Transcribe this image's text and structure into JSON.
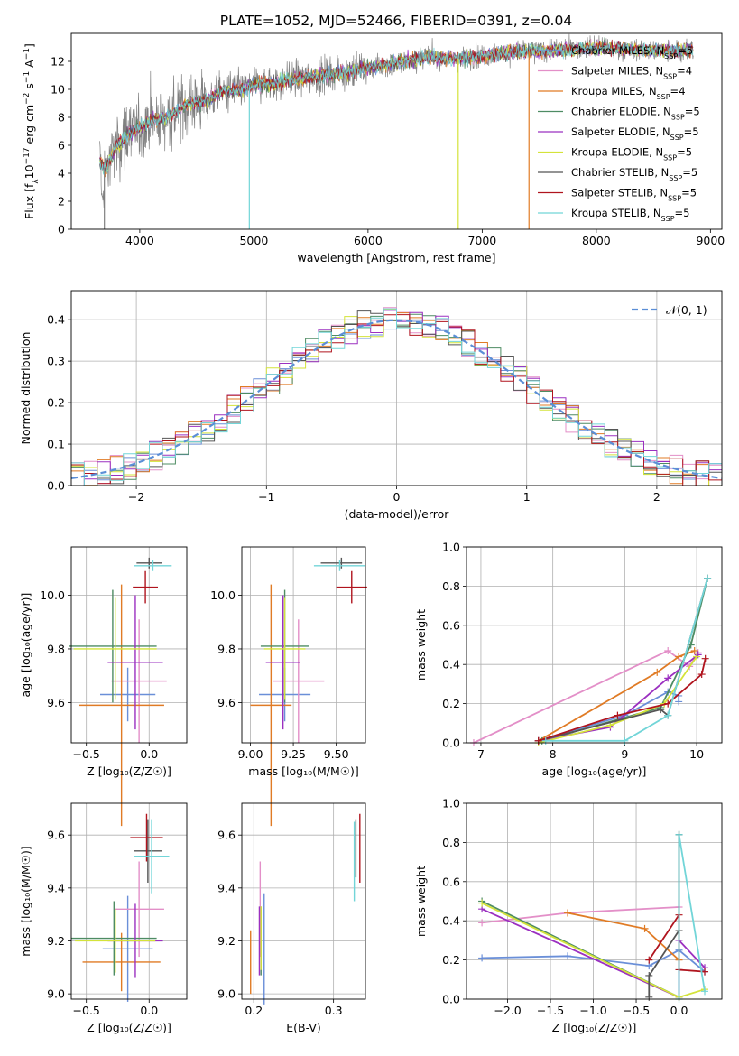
{
  "figure_title": "PLATE=1052, MJD=52466, FIBERID=0391, z=0.04",
  "colors": {
    "chabrier_miles": "#6a8fd8",
    "salpeter_miles": "#e38fc8",
    "kroupa_miles": "#e07b25",
    "chabrier_elodie": "#4e8c63",
    "salpeter_elodie": "#9b30c0",
    "kroupa_elodie": "#d4e33a",
    "chabrier_stelib": "#555555",
    "salpeter_stelib": "#b0141e",
    "kroupa_stelib": "#72d5d8",
    "data": "#808080",
    "normal": "#5b8ed6",
    "grid": "#b0b0b0"
  },
  "chart_data": [
    {
      "id": "spectrum",
      "type": "line",
      "title": "PLATE=1052, MJD=52466, FIBERID=0391, z=0.04",
      "xlabel": "wavelength [Angstrom, rest frame]",
      "ylabel_parts": [
        "Flux [f",
        "λ",
        "10",
        "−17",
        " erg cm",
        "−2",
        " s",
        "−1",
        " A",
        "−1",
        "]"
      ],
      "xlim": [
        3400,
        9100
      ],
      "ylim": [
        0,
        14
      ],
      "xticks": [
        "4000",
        "5000",
        "6000",
        "7000",
        "8000",
        "9000"
      ],
      "yticks": [
        "0",
        "2",
        "4",
        "6",
        "8",
        "10",
        "12"
      ],
      "grid": false,
      "legend_position": "right",
      "legend": [
        {
          "name": "Chabrier MILES",
          "n": "5",
          "color_key": "chabrier_miles"
        },
        {
          "name": "Salpeter MILES",
          "n": "4",
          "color_key": "salpeter_miles"
        },
        {
          "name": "Kroupa MILES",
          "n": "4",
          "color_key": "kroupa_miles"
        },
        {
          "name": "Chabrier ELODIE",
          "n": "5",
          "color_key": "chabrier_elodie"
        },
        {
          "name": "Salpeter ELODIE",
          "n": "5",
          "color_key": "salpeter_elodie"
        },
        {
          "name": "Kroupa ELODIE",
          "n": "5",
          "color_key": "kroupa_elodie"
        },
        {
          "name": "Chabrier STELIB",
          "n": "5",
          "color_key": "chabrier_stelib"
        },
        {
          "name": "Salpeter STELIB",
          "n": "5",
          "color_key": "salpeter_stelib"
        },
        {
          "name": "Kroupa STELIB",
          "n": "5",
          "color_key": "kroupa_stelib"
        }
      ],
      "continuum": [
        [
          3650,
          4.8
        ],
        [
          3700,
          4.3
        ],
        [
          3800,
          6.0
        ],
        [
          3900,
          6.8
        ],
        [
          4000,
          7.3
        ],
        [
          4100,
          7.8
        ],
        [
          4200,
          7.9
        ],
        [
          4300,
          8.3
        ],
        [
          4400,
          8.9
        ],
        [
          4500,
          9.1
        ],
        [
          4600,
          9.3
        ],
        [
          4700,
          9.8
        ],
        [
          4800,
          9.9
        ],
        [
          4900,
          10.0
        ],
        [
          5000,
          10.3
        ],
        [
          5100,
          10.4
        ],
        [
          5200,
          10.5
        ],
        [
          5300,
          10.7
        ],
        [
          5400,
          10.8
        ],
        [
          5500,
          10.9
        ],
        [
          5600,
          11.0
        ],
        [
          5700,
          11.1
        ],
        [
          5800,
          11.2
        ],
        [
          5900,
          11.4
        ],
        [
          6000,
          11.5
        ],
        [
          6100,
          11.6
        ],
        [
          6200,
          11.8
        ],
        [
          6300,
          12.0
        ],
        [
          6400,
          12.1
        ],
        [
          6500,
          12.3
        ],
        [
          6600,
          12.3
        ],
        [
          6700,
          12.2
        ],
        [
          6800,
          12.2
        ],
        [
          6900,
          12.3
        ],
        [
          7000,
          12.4
        ],
        [
          7200,
          12.6
        ],
        [
          7400,
          12.7
        ],
        [
          7600,
          12.8
        ],
        [
          7800,
          12.9
        ],
        [
          8000,
          13.0
        ],
        [
          8200,
          12.9
        ],
        [
          8400,
          12.8
        ],
        [
          8600,
          12.8
        ],
        [
          8800,
          12.8
        ]
      ]
    },
    {
      "id": "residuals",
      "type": "histogram",
      "xlabel": "(data-model)/error",
      "ylabel": "Normed distribution",
      "xlim": [
        -2.5,
        2.5
      ],
      "ylim": [
        0,
        0.47
      ],
      "xticks": [
        "−2",
        "−1",
        "0",
        "1",
        "2"
      ],
      "yticks": [
        "0.0",
        "0.1",
        "0.2",
        "0.3",
        "0.4"
      ],
      "grid": true,
      "legend_position": "top-right",
      "legend_label": "𝒩(0, 1)"
    },
    {
      "id": "age_vs_Z",
      "type": "scatter",
      "xlabel": "Z [log₁₀(Z/Z☉)]",
      "ylabel": "age  [log₁₀(age/yr)]",
      "xlim": [
        -0.62,
        0.3
      ],
      "ylim": [
        9.45,
        10.18
      ],
      "xticks": [
        "−0.5",
        "0.0"
      ],
      "yticks": [
        "9.6",
        "9.8",
        "10.0"
      ],
      "grid": true,
      "points": [
        {
          "color_key": "chabrier_miles",
          "x": -0.17,
          "y": 9.63,
          "xerr": 0.22,
          "yerr": 0.1
        },
        {
          "color_key": "salpeter_miles",
          "x": -0.08,
          "y": 9.68,
          "xerr": 0.22,
          "yerr": 0.23
        },
        {
          "color_key": "kroupa_miles",
          "x": -0.22,
          "y": 9.59,
          "xerr": 0.34,
          "yerr": 0.45
        },
        {
          "color_key": "chabrier_elodie",
          "x": -0.29,
          "y": 9.81,
          "xerr": 0.35,
          "yerr": 0.21
        },
        {
          "color_key": "salpeter_elodie",
          "x": -0.11,
          "y": 9.75,
          "xerr": 0.22,
          "yerr": 0.25
        },
        {
          "color_key": "kroupa_elodie",
          "x": -0.27,
          "y": 9.8,
          "xerr": 0.33,
          "yerr": 0.19
        },
        {
          "color_key": "chabrier_stelib",
          "x": 0.0,
          "y": 10.12,
          "xerr": 0.1,
          "yerr": 0.02
        },
        {
          "color_key": "salpeter_stelib",
          "x": -0.03,
          "y": 10.03,
          "xerr": 0.1,
          "yerr": 0.06
        },
        {
          "color_key": "kroupa_stelib",
          "x": 0.03,
          "y": 10.11,
          "xerr": 0.15,
          "yerr": 0.02
        }
      ]
    },
    {
      "id": "age_vs_mass",
      "type": "scatter",
      "xlabel": "mass [log₁₀(M/M☉)]",
      "ylabel": "",
      "xlim": [
        8.95,
        9.67
      ],
      "ylim": [
        9.45,
        10.18
      ],
      "xticks": [
        "9.00",
        "9.25",
        "9.50"
      ],
      "yticks": [
        "9.6",
        "9.8",
        "10.0"
      ],
      "grid": true,
      "points": [
        {
          "color_key": "chabrier_miles",
          "x": 9.2,
          "y": 9.63,
          "xerr": 0.15,
          "yerr": 0.1
        },
        {
          "color_key": "salpeter_miles",
          "x": 9.28,
          "y": 9.68,
          "xerr": 0.15,
          "yerr": 0.23
        },
        {
          "color_key": "kroupa_miles",
          "x": 9.12,
          "y": 9.59,
          "xerr": 0.12,
          "yerr": 0.45
        },
        {
          "color_key": "chabrier_elodie",
          "x": 9.2,
          "y": 9.81,
          "xerr": 0.14,
          "yerr": 0.21
        },
        {
          "color_key": "salpeter_elodie",
          "x": 9.19,
          "y": 9.75,
          "xerr": 0.1,
          "yerr": 0.25
        },
        {
          "color_key": "kroupa_elodie",
          "x": 9.2,
          "y": 9.8,
          "xerr": 0.12,
          "yerr": 0.19
        },
        {
          "color_key": "chabrier_stelib",
          "x": 9.53,
          "y": 10.12,
          "xerr": 0.12,
          "yerr": 0.02
        },
        {
          "color_key": "salpeter_stelib",
          "x": 9.59,
          "y": 10.03,
          "xerr": 0.09,
          "yerr": 0.06
        },
        {
          "color_key": "kroupa_stelib",
          "x": 9.52,
          "y": 10.11,
          "xerr": 0.15,
          "yerr": 0.02
        }
      ]
    },
    {
      "id": "mass_weight_vs_age",
      "type": "line",
      "xlabel": "age  [log₁₀(age/yr)]",
      "ylabel": "mass weight",
      "xlim": [
        6.8,
        10.35
      ],
      "ylim": [
        0,
        1
      ],
      "xticks": [
        "7",
        "8",
        "9",
        "10"
      ],
      "yticks": [
        "0.0",
        "0.2",
        "0.4",
        "0.6",
        "0.8",
        "1.0"
      ],
      "grid": true,
      "series": [
        {
          "color_key": "chabrier_miles",
          "points": [
            [
              7.8,
              0.01
            ],
            [
              9.0,
              0.14
            ],
            [
              9.6,
              0.26
            ],
            [
              9.75,
              0.24
            ],
            [
              9.75,
              0.21
            ]
          ]
        },
        {
          "color_key": "salpeter_miles",
          "points": [
            [
              6.9,
              0.0
            ],
            [
              9.6,
              0.47
            ],
            [
              9.9,
              0.39
            ],
            [
              10.02,
              0.46
            ]
          ]
        },
        {
          "color_key": "kroupa_miles",
          "points": [
            [
              7.8,
              0.01
            ],
            [
              9.45,
              0.36
            ],
            [
              9.75,
              0.44
            ],
            [
              9.97,
              0.47
            ]
          ]
        },
        {
          "color_key": "chabrier_elodie",
          "points": [
            [
              7.85,
              0.01
            ],
            [
              9.5,
              0.18
            ],
            [
              9.92,
              0.5
            ],
            [
              10.15,
              0.84
            ]
          ]
        },
        {
          "color_key": "salpeter_elodie",
          "points": [
            [
              7.8,
              0.01
            ],
            [
              8.8,
              0.08
            ],
            [
              9.6,
              0.33
            ],
            [
              10.02,
              0.45
            ]
          ]
        },
        {
          "color_key": "kroupa_elodie",
          "points": [
            [
              7.8,
              0.0
            ],
            [
              8.8,
              0.09
            ],
            [
              9.55,
              0.2
            ],
            [
              10.0,
              0.44
            ]
          ]
        },
        {
          "color_key": "chabrier_stelib",
          "points": [
            [
              7.8,
              0.01
            ],
            [
              9.5,
              0.17
            ],
            [
              9.6,
              0.14
            ],
            [
              10.15,
              0.84
            ]
          ]
        },
        {
          "color_key": "salpeter_stelib",
          "points": [
            [
              7.8,
              0.01
            ],
            [
              8.9,
              0.14
            ],
            [
              9.6,
              0.2
            ],
            [
              10.07,
              0.35
            ],
            [
              10.12,
              0.43
            ]
          ]
        },
        {
          "color_key": "kroupa_stelib",
          "points": [
            [
              7.9,
              0.01
            ],
            [
              9.0,
              0.01
            ],
            [
              9.6,
              0.14
            ],
            [
              10.15,
              0.84
            ]
          ]
        }
      ]
    },
    {
      "id": "mass_vs_Z",
      "type": "scatter",
      "xlabel": "Z [log₁₀(Z/Z☉)]",
      "ylabel": "mass [log₁₀(M/M☉)]",
      "xlim": [
        -0.62,
        0.3
      ],
      "ylim": [
        8.98,
        9.72
      ],
      "xticks": [
        "−0.5",
        "0.0"
      ],
      "yticks": [
        "9.0",
        "9.2",
        "9.4",
        "9.6"
      ],
      "grid": true,
      "points": [
        {
          "color_key": "chabrier_miles",
          "x": -0.17,
          "y": 9.17,
          "xerr": 0.2,
          "yerr": 0.2
        },
        {
          "color_key": "salpeter_miles",
          "x": -0.08,
          "y": 9.32,
          "xerr": 0.2,
          "yerr": 0.18
        },
        {
          "color_key": "kroupa_miles",
          "x": -0.22,
          "y": 9.12,
          "xerr": 0.31,
          "yerr": 0.11
        },
        {
          "color_key": "chabrier_elodie",
          "x": -0.28,
          "y": 9.21,
          "xerr": 0.34,
          "yerr": 0.14
        },
        {
          "color_key": "salpeter_elodie",
          "x": -0.11,
          "y": 9.2,
          "xerr": 0.22,
          "yerr": 0.14
        },
        {
          "color_key": "kroupa_elodie",
          "x": -0.27,
          "y": 9.2,
          "xerr": 0.32,
          "yerr": 0.12
        },
        {
          "color_key": "chabrier_stelib",
          "x": -0.01,
          "y": 9.54,
          "xerr": 0.11,
          "yerr": 0.12
        },
        {
          "color_key": "salpeter_stelib",
          "x": -0.02,
          "y": 9.59,
          "xerr": 0.13,
          "yerr": 0.09
        },
        {
          "color_key": "kroupa_stelib",
          "x": 0.02,
          "y": 9.52,
          "xerr": 0.14,
          "yerr": 0.14
        }
      ]
    },
    {
      "id": "mass_vs_ebv",
      "type": "scatter",
      "xlabel": "E(B-V)",
      "ylabel": "",
      "xlim": [
        0.185,
        0.34
      ],
      "ylim": [
        8.98,
        9.72
      ],
      "xticks": [
        "0.2",
        "0.3"
      ],
      "yticks": [
        "9.0",
        "9.2",
        "9.4",
        "9.6"
      ],
      "grid": true,
      "points": [
        {
          "color_key": "chabrier_miles",
          "x": 0.213,
          "y": 9.17,
          "yerr": 0.21
        },
        {
          "color_key": "salpeter_miles",
          "x": 0.208,
          "y": 9.32,
          "yerr": 0.18
        },
        {
          "color_key": "kroupa_miles",
          "x": 0.196,
          "y": 9.12,
          "yerr": 0.12
        },
        {
          "color_key": "chabrier_elodie",
          "x": 0.209,
          "y": 9.2,
          "yerr": 0.13
        },
        {
          "color_key": "salpeter_elodie",
          "x": 0.207,
          "y": 9.2,
          "yerr": 0.13
        },
        {
          "color_key": "kroupa_elodie",
          "x": 0.209,
          "y": 9.21,
          "yerr": 0.12
        },
        {
          "color_key": "chabrier_stelib",
          "x": 0.328,
          "y": 9.55,
          "yerr": 0.11
        },
        {
          "color_key": "salpeter_stelib",
          "x": 0.333,
          "y": 9.55,
          "yerr": 0.13
        },
        {
          "color_key": "kroupa_stelib",
          "x": 0.326,
          "y": 9.5,
          "yerr": 0.15
        }
      ]
    },
    {
      "id": "mass_weight_vs_Z",
      "type": "line",
      "xlabel": "Z [log₁₀(Z/Z☉)]",
      "ylabel": "mass weight",
      "xlim": [
        -2.48,
        0.5
      ],
      "ylim": [
        0,
        1
      ],
      "xticks": [
        "−2.0",
        "−1.5",
        "−1.0",
        "−0.5",
        "0.0"
      ],
      "yticks": [
        "0.0",
        "0.2",
        "0.4",
        "0.6",
        "0.8",
        "1.0"
      ],
      "grid": true,
      "series": [
        {
          "color_key": "chabrier_miles",
          "points": [
            [
              -2.3,
              0.21
            ],
            [
              -1.3,
              0.22
            ],
            [
              -0.35,
              0.17
            ],
            [
              0.0,
              0.25
            ],
            [
              0.3,
              0.14
            ]
          ]
        },
        {
          "color_key": "salpeter_miles",
          "points": [
            [
              -2.3,
              0.39
            ],
            [
              -1.3,
              0.44
            ],
            [
              0.0,
              0.47
            ]
          ]
        },
        {
          "color_key": "kroupa_miles",
          "points": [
            [
              -1.3,
              0.44
            ],
            [
              -0.4,
              0.36
            ],
            [
              0.0,
              0.2
            ],
            [
              0.0,
              0.01
            ]
          ]
        },
        {
          "color_key": "chabrier_elodie",
          "points": [
            [
              -2.3,
              0.5
            ],
            [
              0.0,
              0.01
            ],
            [
              0.0,
              0.84
            ]
          ]
        },
        {
          "color_key": "salpeter_elodie",
          "points": [
            [
              -2.3,
              0.46
            ],
            [
              0.0,
              0.01
            ],
            [
              0.0,
              0.3
            ],
            [
              0.3,
              0.16
            ]
          ]
        },
        {
          "color_key": "kroupa_elodie",
          "points": [
            [
              -2.3,
              0.49
            ],
            [
              0.0,
              0.01
            ],
            [
              0.3,
              0.05
            ]
          ]
        },
        {
          "color_key": "chabrier_stelib",
          "points": [
            [
              -0.35,
              0.01
            ],
            [
              -0.35,
              0.12
            ],
            [
              0.0,
              0.35
            ],
            [
              0.0,
              0.84
            ]
          ]
        },
        {
          "color_key": "salpeter_stelib",
          "points": [
            [
              -0.35,
              0.2
            ],
            [
              0.0,
              0.43
            ],
            [
              0.0,
              0.15
            ],
            [
              0.3,
              0.14
            ]
          ]
        },
        {
          "color_key": "kroupa_stelib",
          "points": [
            [
              0.0,
              0.0
            ],
            [
              0.0,
              0.84
            ],
            [
              0.3,
              0.04
            ]
          ]
        }
      ]
    }
  ]
}
